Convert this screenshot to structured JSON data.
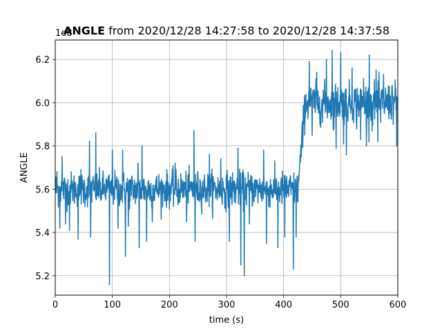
{
  "chart_data": {
    "type": "line",
    "title_bold": "ANGLE",
    "title_rest": " from 2020/12/28 14:27:58 to 2020/12/28 14:37:58",
    "xlabel": "time (s)",
    "ylabel": "ANGLE",
    "offset_label": "1e8",
    "xlim": [
      0,
      600
    ],
    "ylim": [
      5.11,
      6.29
    ],
    "xticks": [
      0,
      100,
      200,
      300,
      400,
      500,
      600
    ],
    "yticks": [
      5.2,
      5.4,
      5.6,
      5.8,
      6.0,
      6.2
    ],
    "ytick_labels": [
      "5.2",
      "5.4",
      "5.6",
      "5.8",
      "6.0",
      "6.2"
    ],
    "grid": true,
    "series": [
      {
        "color": "#1f77b4",
        "segments": [
          {
            "x_start": 0,
            "x_end": 430,
            "mean": 5.6,
            "noise": 0.04
          },
          {
            "x_start": 430,
            "x_end": 600,
            "mean": 6.0,
            "noise": 0.045
          }
        ],
        "spikes": [
          {
            "x": 3,
            "y": 5.68
          },
          {
            "x": 8,
            "y": 5.42
          },
          {
            "x": 12,
            "y": 5.75
          },
          {
            "x": 18,
            "y": 5.44
          },
          {
            "x": 25,
            "y": 5.41
          },
          {
            "x": 40,
            "y": 5.37
          },
          {
            "x": 45,
            "y": 5.69
          },
          {
            "x": 60,
            "y": 5.82
          },
          {
            "x": 62,
            "y": 5.38
          },
          {
            "x": 71,
            "y": 5.86
          },
          {
            "x": 95,
            "y": 5.16
          },
          {
            "x": 100,
            "y": 5.78
          },
          {
            "x": 110,
            "y": 5.42
          },
          {
            "x": 118,
            "y": 5.78
          },
          {
            "x": 123,
            "y": 5.29
          },
          {
            "x": 128,
            "y": 5.43
          },
          {
            "x": 145,
            "y": 5.72
          },
          {
            "x": 147,
            "y": 5.33
          },
          {
            "x": 152,
            "y": 5.8
          },
          {
            "x": 160,
            "y": 5.36
          },
          {
            "x": 170,
            "y": 5.45
          },
          {
            "x": 210,
            "y": 5.72
          },
          {
            "x": 230,
            "y": 5.45
          },
          {
            "x": 243,
            "y": 5.87
          },
          {
            "x": 245,
            "y": 5.36
          },
          {
            "x": 270,
            "y": 5.76
          },
          {
            "x": 290,
            "y": 5.74
          },
          {
            "x": 305,
            "y": 5.36
          },
          {
            "x": 320,
            "y": 5.79
          },
          {
            "x": 325,
            "y": 5.25
          },
          {
            "x": 331,
            "y": 5.2
          },
          {
            "x": 340,
            "y": 5.44
          },
          {
            "x": 365,
            "y": 5.78
          },
          {
            "x": 370,
            "y": 5.35
          },
          {
            "x": 390,
            "y": 5.33
          },
          {
            "x": 402,
            "y": 5.38
          },
          {
            "x": 417,
            "y": 5.23
          },
          {
            "x": 422,
            "y": 5.38
          },
          {
            "x": 445,
            "y": 6.19
          },
          {
            "x": 450,
            "y": 5.85
          },
          {
            "x": 458,
            "y": 6.14
          },
          {
            "x": 468,
            "y": 5.91
          },
          {
            "x": 475,
            "y": 6.2
          },
          {
            "x": 485,
            "y": 6.24
          },
          {
            "x": 488,
            "y": 5.88
          },
          {
            "x": 492,
            "y": 5.79
          },
          {
            "x": 500,
            "y": 6.23
          },
          {
            "x": 505,
            "y": 5.81
          },
          {
            "x": 510,
            "y": 5.76
          },
          {
            "x": 520,
            "y": 6.16
          },
          {
            "x": 528,
            "y": 5.88
          },
          {
            "x": 535,
            "y": 5.83
          },
          {
            "x": 540,
            "y": 6.11
          },
          {
            "x": 545,
            "y": 5.8
          },
          {
            "x": 550,
            "y": 6.22
          },
          {
            "x": 555,
            "y": 5.87
          },
          {
            "x": 562,
            "y": 6.15
          },
          {
            "x": 565,
            "y": 5.82
          },
          {
            "x": 570,
            "y": 5.91
          },
          {
            "x": 575,
            "y": 6.13
          },
          {
            "x": 590,
            "y": 6.08
          },
          {
            "x": 598,
            "y": 5.8
          }
        ]
      }
    ]
  }
}
